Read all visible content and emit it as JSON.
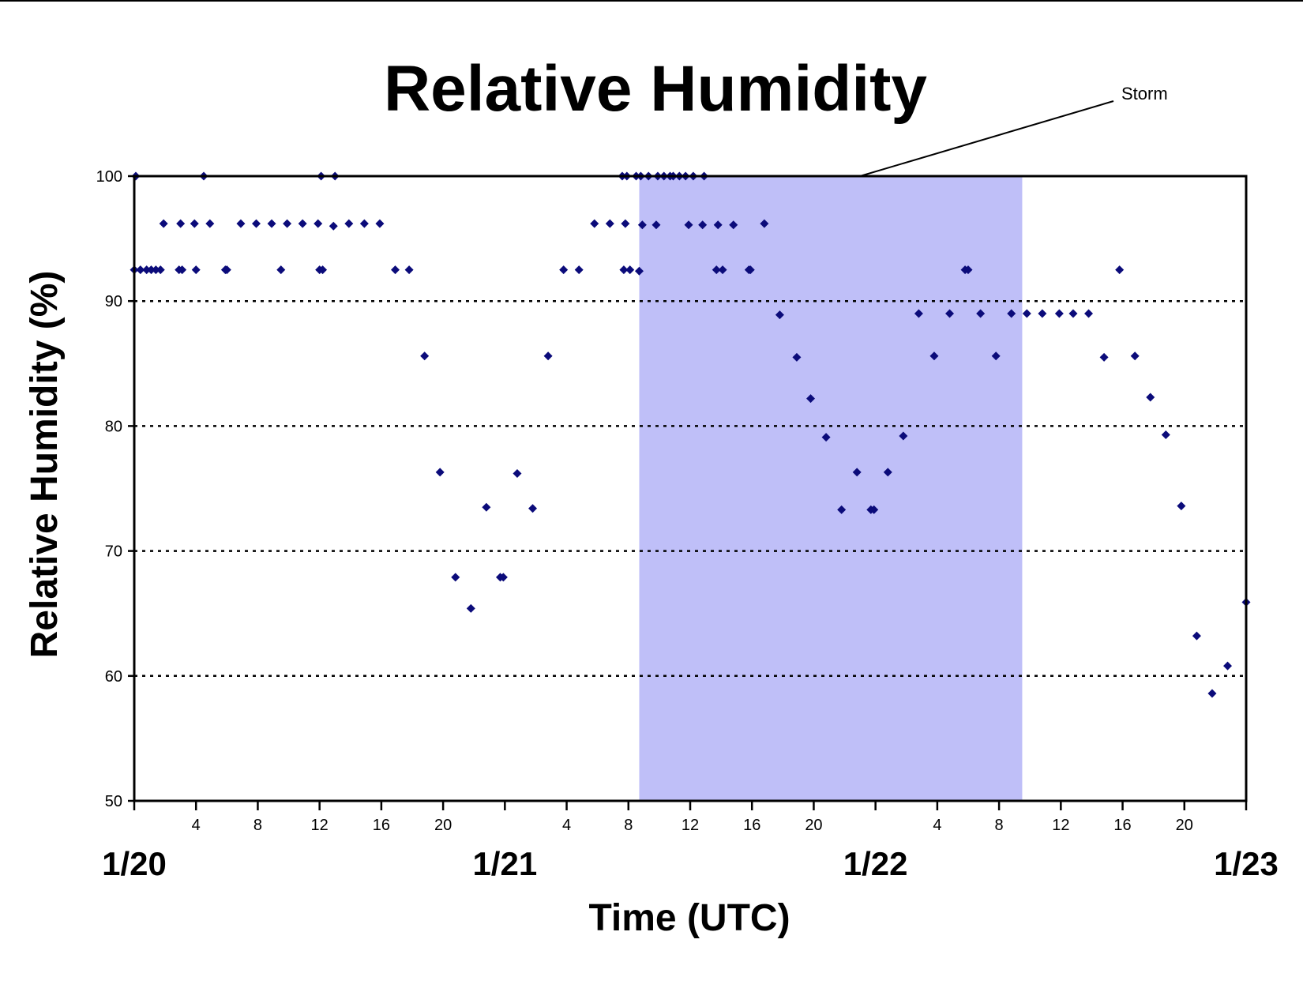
{
  "colors": {
    "marker": "#0b0b7a",
    "storm_band": "#bfbff8",
    "frame": "#000000",
    "grid": "#000000"
  },
  "chart_data": {
    "type": "scatter",
    "title": "Relative Humidity",
    "xlabel": "Time (UTC)",
    "ylabel": "Relative Humidity (%)",
    "ylim": [
      50,
      100
    ],
    "yticks": [
      50,
      60,
      70,
      80,
      90,
      100
    ],
    "grid": "horizontal dotted at 60, 70, 80, 90",
    "xlim_hours": [
      0,
      72
    ],
    "x_unit": "hours since 1/20 00 UTC",
    "hour_ticks": [
      {
        "x": 4,
        "label": "4"
      },
      {
        "x": 8,
        "label": "8"
      },
      {
        "x": 12,
        "label": "12"
      },
      {
        "x": 16,
        "label": "16"
      },
      {
        "x": 20,
        "label": "20"
      },
      {
        "x": 24,
        "label": ""
      },
      {
        "x": 28,
        "label": "4"
      },
      {
        "x": 32,
        "label": "8"
      },
      {
        "x": 36,
        "label": "12"
      },
      {
        "x": 40,
        "label": "16"
      },
      {
        "x": 44,
        "label": "20"
      },
      {
        "x": 48,
        "label": ""
      },
      {
        "x": 52,
        "label": "4"
      },
      {
        "x": 56,
        "label": "8"
      },
      {
        "x": 60,
        "label": "12"
      },
      {
        "x": 64,
        "label": "16"
      },
      {
        "x": 68,
        "label": "20"
      },
      {
        "x": 72,
        "label": ""
      }
    ],
    "date_labels": [
      {
        "x": 0,
        "label": "1/20"
      },
      {
        "x": 24,
        "label": "1/21"
      },
      {
        "x": 48,
        "label": "1/22"
      },
      {
        "x": 72,
        "label": "1/23"
      }
    ],
    "storm_band": {
      "start": 32.7,
      "end": 57.5
    },
    "annotation": {
      "text": "Storm",
      "target_x": 47.0,
      "target_y": 100
    },
    "points": [
      [
        0,
        92.5
      ],
      [
        0.1,
        100
      ],
      [
        0.4,
        92.5
      ],
      [
        0.8,
        92.5
      ],
      [
        1.1,
        92.5
      ],
      [
        1.4,
        92.5
      ],
      [
        1.7,
        92.5
      ],
      [
        1.9,
        96.2
      ],
      [
        2.9,
        92.5
      ],
      [
        3.0,
        96.2
      ],
      [
        3.1,
        92.5
      ],
      [
        3.9,
        96.2
      ],
      [
        4.0,
        92.5
      ],
      [
        4.5,
        100
      ],
      [
        4.9,
        96.2
      ],
      [
        5.9,
        92.5
      ],
      [
        6.0,
        92.5
      ],
      [
        6.9,
        96.2
      ],
      [
        7.9,
        96.2
      ],
      [
        8.9,
        96.2
      ],
      [
        9.5,
        92.5
      ],
      [
        9.9,
        96.2
      ],
      [
        10.9,
        96.2
      ],
      [
        11.9,
        96.2
      ],
      [
        12.0,
        92.5
      ],
      [
        12.1,
        100
      ],
      [
        12.2,
        92.5
      ],
      [
        12.9,
        96.0
      ],
      [
        13.0,
        100
      ],
      [
        13.9,
        96.2
      ],
      [
        14.9,
        96.2
      ],
      [
        15.9,
        96.2
      ],
      [
        16.9,
        92.5
      ],
      [
        17.8,
        92.5
      ],
      [
        18.8,
        85.6
      ],
      [
        19.8,
        76.3
      ],
      [
        20.8,
        67.9
      ],
      [
        21.8,
        65.4
      ],
      [
        22.8,
        73.5
      ],
      [
        23.7,
        67.9
      ],
      [
        23.9,
        67.9
      ],
      [
        24.8,
        76.2
      ],
      [
        25.8,
        73.4
      ],
      [
        26.8,
        85.6
      ],
      [
        27.8,
        92.5
      ],
      [
        28.8,
        92.5
      ],
      [
        29.8,
        96.2
      ],
      [
        30.8,
        96.2
      ],
      [
        31.6,
        100
      ],
      [
        31.7,
        92.5
      ],
      [
        31.8,
        96.2
      ],
      [
        31.9,
        100
      ],
      [
        32.1,
        92.5
      ],
      [
        32.5,
        100
      ],
      [
        32.7,
        92.4
      ],
      [
        32.8,
        100
      ],
      [
        32.9,
        96.1
      ],
      [
        33.3,
        100
      ],
      [
        33.8,
        96.1
      ],
      [
        33.9,
        100
      ],
      [
        34.3,
        100
      ],
      [
        34.7,
        100
      ],
      [
        34.9,
        100
      ],
      [
        35.3,
        100
      ],
      [
        35.7,
        100
      ],
      [
        35.9,
        96.1
      ],
      [
        36.2,
        100
      ],
      [
        36.8,
        96.1
      ],
      [
        36.9,
        100
      ],
      [
        37.7,
        92.5
      ],
      [
        37.8,
        96.1
      ],
      [
        38.1,
        92.5
      ],
      [
        38.8,
        96.1
      ],
      [
        39.8,
        92.5
      ],
      [
        39.9,
        92.5
      ],
      [
        40.8,
        96.2
      ],
      [
        41.8,
        88.9
      ],
      [
        42.9,
        85.5
      ],
      [
        43.8,
        82.2
      ],
      [
        44.8,
        79.1
      ],
      [
        45.8,
        73.3
      ],
      [
        46.8,
        76.3
      ],
      [
        47.7,
        73.3
      ],
      [
        47.9,
        73.3
      ],
      [
        48.8,
        76.3
      ],
      [
        49.8,
        79.2
      ],
      [
        50.8,
        89.0
      ],
      [
        51.8,
        85.6
      ],
      [
        52.8,
        89.0
      ],
      [
        53.8,
        92.5
      ],
      [
        54.0,
        92.5
      ],
      [
        54.8,
        89.0
      ],
      [
        55.8,
        85.6
      ],
      [
        56.8,
        89.0
      ],
      [
        57.8,
        89.0
      ],
      [
        58.8,
        89.0
      ],
      [
        59.9,
        89.0
      ],
      [
        60.8,
        89.0
      ],
      [
        61.8,
        89.0
      ],
      [
        62.8,
        85.5
      ],
      [
        63.8,
        92.5
      ],
      [
        64.8,
        85.6
      ],
      [
        65.8,
        82.3
      ],
      [
        66.8,
        79.3
      ],
      [
        67.8,
        73.6
      ],
      [
        68.8,
        63.2
      ],
      [
        69.8,
        58.6
      ],
      [
        70.8,
        60.8
      ],
      [
        72.0,
        65.9
      ]
    ]
  }
}
